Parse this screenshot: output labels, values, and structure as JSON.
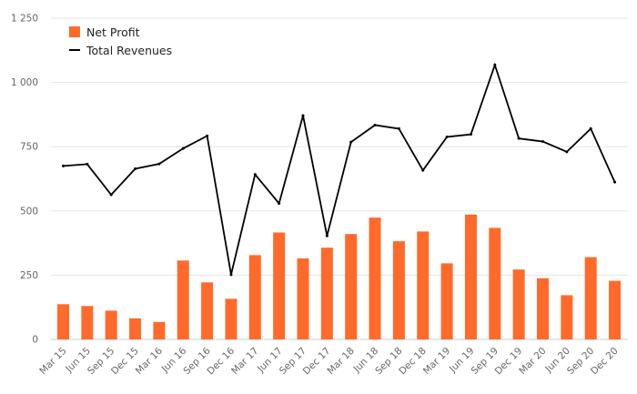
{
  "chart_data": {
    "type": "bar",
    "title": "",
    "xlabel": "",
    "ylabel": "",
    "ylim": [
      0,
      1250
    ],
    "y_ticks": [
      0,
      250,
      500,
      750,
      1000,
      1250
    ],
    "y_tick_labels": [
      "0",
      "250",
      "500",
      "750",
      "1 000",
      "1 250"
    ],
    "grid": true,
    "legend_position": "top-left",
    "categories": [
      "Mar 15",
      "Jun 15",
      "Sep 15",
      "Dec 15",
      "Mar 16",
      "Jun 16",
      "Sep 16",
      "Dec 16",
      "Mar 17",
      "Jun 17",
      "Sep 17",
      "Dec 17",
      "Mar 18",
      "Jun 18",
      "Sep 18",
      "Dec 18",
      "Mar 19",
      "Jun 19",
      "Sep 19",
      "Dec 19",
      "Mar 20",
      "Jun 20",
      "Sep 20",
      "Dec 20"
    ],
    "series": [
      {
        "name": "Net Profit",
        "kind": "bar",
        "color": "#ff6a2b",
        "values": [
          137,
          130,
          112,
          82,
          68,
          307,
          222,
          158,
          328,
          416,
          315,
          357,
          410,
          474,
          382,
          420,
          296,
          486,
          434,
          272,
          238,
          172,
          320,
          228
        ]
      },
      {
        "name": "Total Revenues",
        "kind": "line",
        "color": "#000000",
        "values": [
          675,
          682,
          563,
          664,
          683,
          743,
          792,
          252,
          642,
          529,
          871,
          403,
          768,
          834,
          820,
          658,
          788,
          798,
          1068,
          782,
          770,
          730,
          820,
          612
        ]
      }
    ]
  }
}
